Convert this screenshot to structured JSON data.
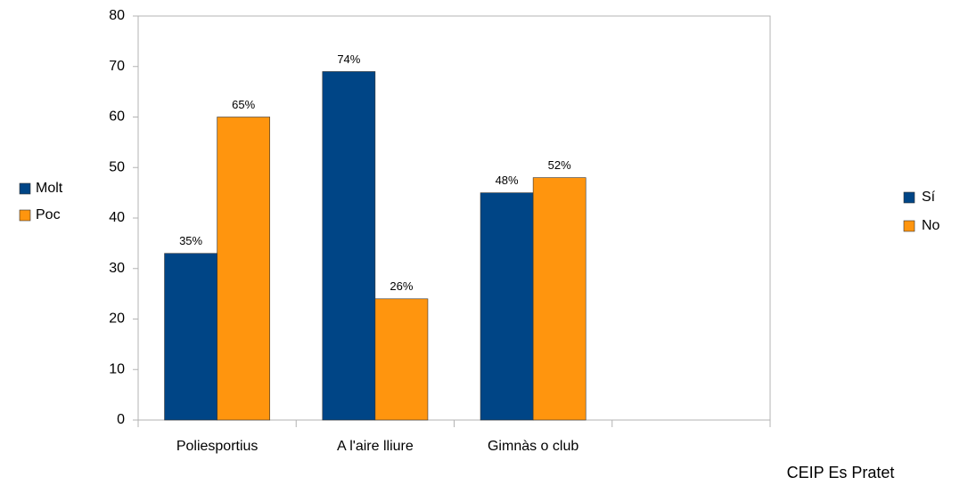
{
  "chart_data": {
    "type": "bar",
    "categories": [
      "Poliesportius",
      "A l'aire lliure",
      "Gimnàs o club",
      null
    ],
    "series": [
      {
        "name": "Molt",
        "color": "#004586",
        "values": [
          33,
          69,
          45,
          null
        ],
        "value_labels": [
          "35%",
          "74%",
          "48%",
          null
        ]
      },
      {
        "name": "Poc",
        "color": "#ff950e",
        "values": [
          60,
          24,
          48,
          null
        ],
        "value_labels": [
          "65%",
          "26%",
          "52%",
          null
        ]
      }
    ],
    "second_legend": [
      "Sí",
      "No"
    ],
    "annotation": "CEIP Es Pratet",
    "ylim": [
      0,
      80
    ],
    "yticks": [
      0,
      10,
      20,
      30,
      40,
      50,
      60,
      70,
      80
    ],
    "grid": false
  }
}
